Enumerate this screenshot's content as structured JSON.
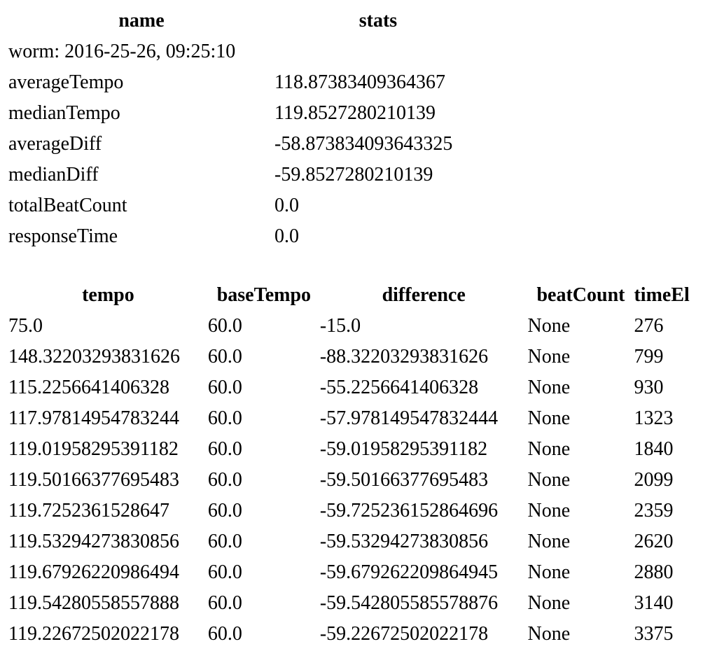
{
  "stats_table": {
    "headers": {
      "name": "name",
      "stats": "stats"
    },
    "title_row": "worm: 2016-25-26, 09:25:10",
    "rows": [
      {
        "name": "averageTempo",
        "value": "118.87383409364367"
      },
      {
        "name": "medianTempo",
        "value": "119.8527280210139"
      },
      {
        "name": "averageDiff",
        "value": "-58.873834093643325"
      },
      {
        "name": "medianDiff",
        "value": "-59.8527280210139"
      },
      {
        "name": "totalBeatCount",
        "value": "0.0"
      },
      {
        "name": "responseTime",
        "value": "0.0"
      }
    ]
  },
  "tempo_table": {
    "headers": [
      "tempo",
      "baseTempo",
      "difference",
      "beatCount",
      "timeEl"
    ],
    "rows": [
      [
        "75.0",
        "60.0",
        "-15.0",
        "None",
        "276"
      ],
      [
        "148.32203293831626",
        "60.0",
        "-88.32203293831626",
        "None",
        "799"
      ],
      [
        "115.2256641406328",
        "60.0",
        "-55.2256641406328",
        "None",
        "930"
      ],
      [
        "117.97814954783244",
        "60.0",
        "-57.978149547832444",
        "None",
        "1323"
      ],
      [
        "119.01958295391182",
        "60.0",
        "-59.01958295391182",
        "None",
        "1840"
      ],
      [
        "119.50166377695483",
        "60.0",
        "-59.50166377695483",
        "None",
        "2099"
      ],
      [
        "119.7252361528647",
        "60.0",
        "-59.725236152864696",
        "None",
        "2359"
      ],
      [
        "119.53294273830856",
        "60.0",
        "-59.53294273830856",
        "None",
        "2620"
      ],
      [
        "119.67926220986494",
        "60.0",
        "-59.679262209864945",
        "None",
        "2880"
      ],
      [
        "119.54280558557888",
        "60.0",
        "-59.542805585578876",
        "None",
        "3140"
      ],
      [
        "119.22672502022178",
        "60.0",
        "-59.22672502022178",
        "None",
        "3375"
      ]
    ]
  }
}
